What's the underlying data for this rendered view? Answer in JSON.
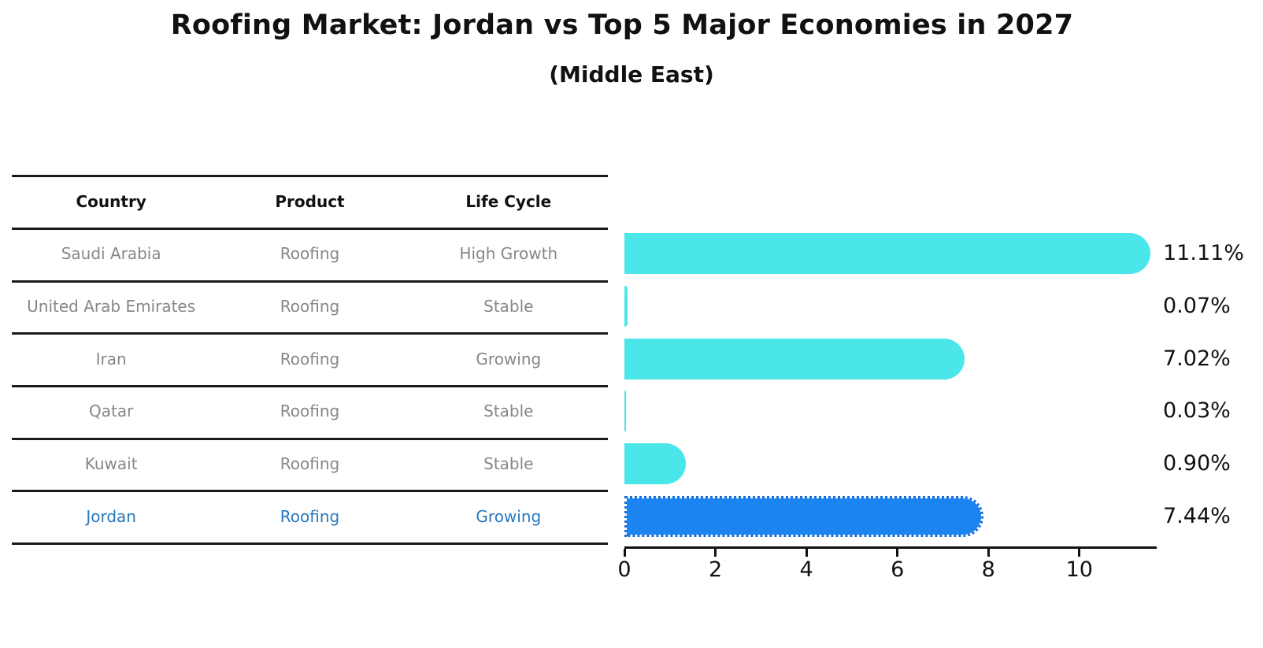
{
  "title": "Roofing Market: Jordan vs Top 5 Major Economies in 2027",
  "subtitle": "(Middle East)",
  "table": {
    "columns": [
      "Country",
      "Product",
      "Life Cycle"
    ],
    "rows": [
      {
        "country": "Saudi Arabia",
        "product": "Roofing",
        "life_cycle": "High Growth",
        "highlight": false
      },
      {
        "country": "United Arab Emirates",
        "product": "Roofing",
        "life_cycle": "Stable",
        "highlight": false
      },
      {
        "country": "Iran",
        "product": "Roofing",
        "life_cycle": "Growing",
        "highlight": false
      },
      {
        "country": "Qatar",
        "product": "Roofing",
        "life_cycle": "Stable",
        "highlight": false
      },
      {
        "country": "Kuwait",
        "product": "Roofing",
        "life_cycle": "Stable",
        "highlight": false
      },
      {
        "country": "Jordan",
        "product": "Roofing",
        "life_cycle": "Growing",
        "highlight": true
      }
    ]
  },
  "chart_data": {
    "type": "bar",
    "orientation": "horizontal",
    "title": "Roofing Market: Jordan vs Top 5 Major Economies in 2027",
    "subtitle": "(Middle East)",
    "categories": [
      "Saudi Arabia",
      "United Arab Emirates",
      "Iran",
      "Qatar",
      "Kuwait",
      "Jordan"
    ],
    "values": [
      11.11,
      0.07,
      7.02,
      0.03,
      0.9,
      7.44
    ],
    "value_labels": [
      "11.11%",
      "0.07%",
      "7.02%",
      "0.03%",
      "0.90%",
      "7.44%"
    ],
    "x_ticks": [
      0,
      2,
      4,
      6,
      8,
      10
    ],
    "xlim": [
      0,
      11.7
    ],
    "highlight_index": 5,
    "grid": false,
    "legend": false,
    "xlabel": "",
    "ylabel": ""
  },
  "colors": {
    "bar_default": "#4ae6e9",
    "bar_highlight": "#1b84f0",
    "bar_highlight_border": "#186fd6",
    "highlight_text": "#2878be",
    "table_text": "#878787",
    "header_text": "#111111",
    "axis": "#111111"
  }
}
